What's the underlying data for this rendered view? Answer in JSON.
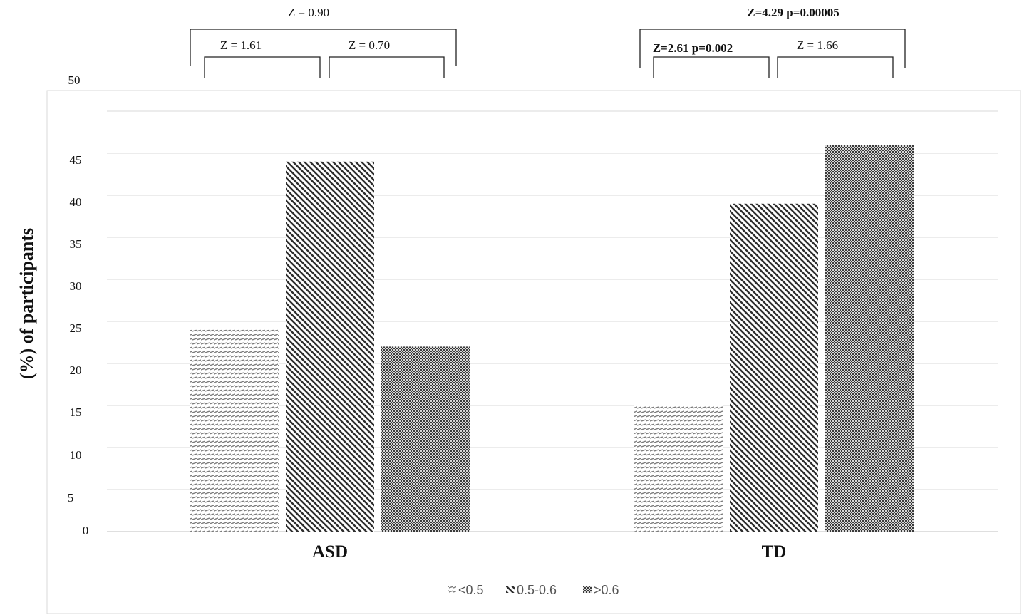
{
  "chart_data": {
    "type": "bar",
    "categories": [
      "ASD",
      "TD"
    ],
    "series": [
      {
        "name": "<0.5",
        "values": [
          24,
          15
        ],
        "pattern": "horiz-dash",
        "color": "#7a7a7a"
      },
      {
        "name": "0.5-0.6",
        "values": [
          44,
          39
        ],
        "pattern": "diagonal",
        "color": "#3a3a3a"
      },
      {
        "name": ">0.6",
        "values": [
          22,
          46
        ],
        "pattern": "dots",
        "color": "#555555"
      }
    ],
    "ylabel": "(%) of participants",
    "ylim": [
      0,
      50
    ],
    "y_ticks": [
      "0",
      "5",
      "10",
      "15",
      "20",
      "25",
      "30",
      "35",
      "40",
      "45",
      "50"
    ],
    "grid": true,
    "legend_position": "bottom-center",
    "comparisons": [
      {
        "category": "ASD",
        "label": "Z = 1.61",
        "bold": false,
        "span": "series-1-2"
      },
      {
        "category": "ASD",
        "label": "Z = 0.70",
        "bold": false,
        "span": "series-2-3"
      },
      {
        "category": "ASD",
        "label": "Z = 0.90",
        "bold": false,
        "span": "series-1-3"
      },
      {
        "category": "TD",
        "label": "Z=2.61  p=0.002",
        "bold": true,
        "span": "series-1-2"
      },
      {
        "category": "TD",
        "label": "Z = 1.66",
        "bold": false,
        "span": "series-2-3"
      },
      {
        "category": "TD",
        "label": "Z=4.29  p=0.00005",
        "bold": true,
        "span": "series-1-3"
      }
    ]
  }
}
